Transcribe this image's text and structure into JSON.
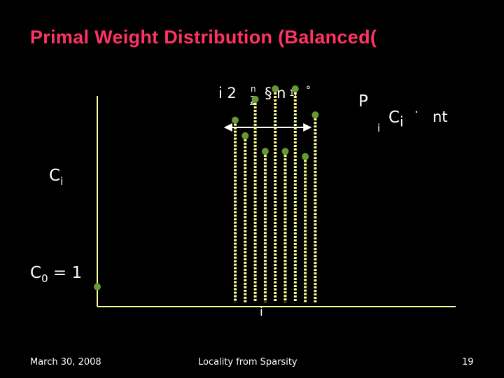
{
  "slide": {
    "title": "Primal Weight Distribution (Balanced(",
    "formula_left": "i 2",
    "formula_frac_num": "n",
    "formula_frac_den": "2",
    "formula_right": "§ n",
    "formula_sub": "1i",
    "formula_end": "°",
    "sum_symbol": "P",
    "sum_index": "i",
    "sum_term": "C",
    "sum_term_sub": "i",
    "sum_op": "·",
    "sum_rhs": "nt",
    "ci_label": "C",
    "ci_label_sub": "i",
    "c0_label": "C",
    "c0_sub": "0",
    "c0_eq": " = 1",
    "x_marker": "i"
  },
  "footer": {
    "date": "March 30, 2008",
    "center": "Locality from Sparsity",
    "page": "19"
  },
  "colors": {
    "title": "#ff3366",
    "axis": "#ffff99",
    "bars": "#ffff99",
    "dots": "#669933"
  },
  "chart_data": {
    "type": "bar",
    "description_free": true,
    "values": [
      0.7,
      0.64,
      0.78,
      0.58,
      0.82,
      0.58,
      0.82,
      0.56,
      0.72
    ],
    "baseline_value": 0.06,
    "ylim": [
      0,
      1
    ]
  }
}
